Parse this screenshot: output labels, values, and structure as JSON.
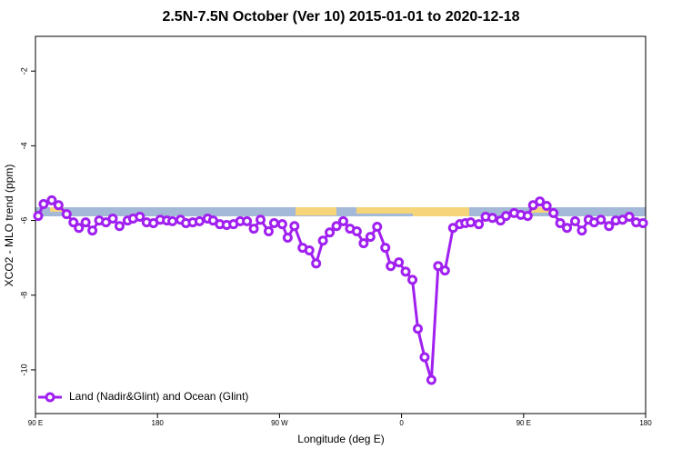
{
  "chart_data": {
    "type": "line",
    "title": "2.5N-7.5N October (Ver 10)   2015-01-01 to 2020-12-18",
    "x_label": "Longitude (deg E)",
    "y_label": "XCO2 - MLO trend (ppm)",
    "xlim": [
      90,
      540
    ],
    "xticks": [
      {
        "value": 90,
        "label": "90 E"
      },
      {
        "value": 180,
        "label": "180"
      },
      {
        "value": 270,
        "label": "90 W"
      },
      {
        "value": 360,
        "label": "0"
      },
      {
        "value": 450,
        "label": "90 E"
      },
      {
        "value": 540,
        "label": "180"
      }
    ],
    "ylim": [
      -11.17,
      -1.07
    ],
    "yticks": [
      -2,
      -4,
      -6,
      -8,
      -10
    ],
    "legend": "bottom-left",
    "x": [
      92,
      96,
      102,
      107,
      113,
      118,
      122,
      127,
      132,
      137,
      142,
      147,
      152,
      158,
      162,
      167,
      172,
      177,
      182,
      187,
      191,
      197,
      201,
      206,
      211,
      217,
      221,
      226,
      231,
      236,
      241,
      246,
      251,
      256,
      262,
      266,
      272,
      276,
      281,
      287,
      292,
      297,
      302,
      307,
      312,
      317,
      322,
      327,
      332,
      337,
      342,
      348,
      352,
      358,
      363,
      368,
      372,
      377,
      382,
      387,
      392,
      398,
      403,
      407,
      411,
      417,
      422,
      427,
      433,
      437,
      443,
      448,
      453,
      457,
      462,
      467,
      472,
      477,
      482,
      488,
      493,
      498,
      502,
      507,
      513,
      518,
      523,
      528,
      533,
      538
    ],
    "series": [
      {
        "name": "Land (Nadir&Glint) and Ocean (Glint)",
        "color": "#a020f0",
        "values": [
          -5.88,
          -5.56,
          -5.46,
          -5.59,
          -5.83,
          -6.05,
          -6.2,
          -6.05,
          -6.27,
          -6.0,
          -6.05,
          -5.95,
          -6.15,
          -6.0,
          -5.95,
          -5.9,
          -6.05,
          -6.07,
          -5.98,
          -6.0,
          -6.02,
          -5.98,
          -6.07,
          -6.05,
          -6.02,
          -5.95,
          -6.0,
          -6.1,
          -6.12,
          -6.1,
          -6.02,
          -6.02,
          -6.22,
          -5.98,
          -6.29,
          -6.07,
          -6.1,
          -6.46,
          -6.15,
          -6.73,
          -6.8,
          -7.15,
          -6.54,
          -6.32,
          -6.15,
          -6.02,
          -6.22,
          -6.29,
          -6.61,
          -6.44,
          -6.17,
          -6.73,
          -7.22,
          -7.12,
          -7.37,
          -7.59,
          -8.9,
          -9.66,
          -10.27,
          -7.22,
          -7.34,
          -6.2,
          -6.1,
          -6.07,
          -6.05,
          -6.1,
          -5.9,
          -5.93,
          -6.0,
          -5.88,
          -5.8,
          -5.85,
          -5.88,
          -5.59,
          -5.49,
          -5.61,
          -5.8,
          -6.07,
          -6.2,
          -6.02,
          -6.27,
          -5.98,
          -6.05,
          -5.98,
          -6.15,
          -6.0,
          -5.98,
          -5.9,
          -6.05,
          -6.07
        ]
      }
    ]
  }
}
